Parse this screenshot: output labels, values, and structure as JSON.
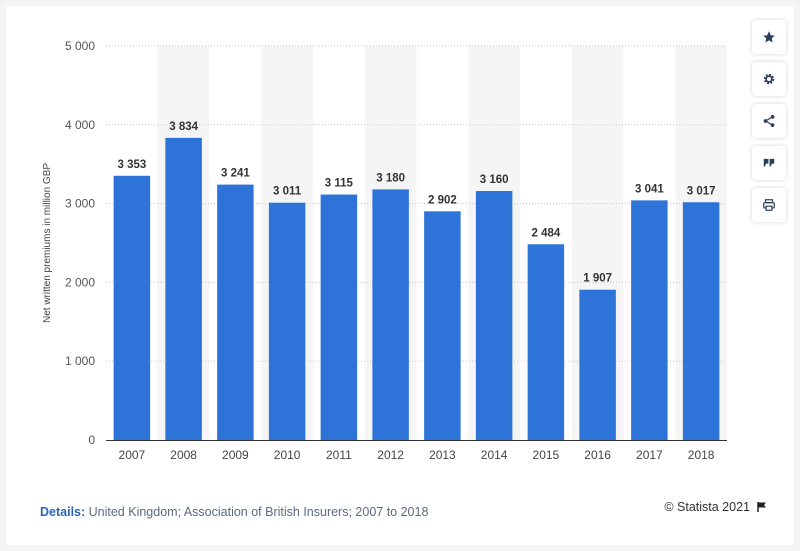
{
  "chart_data": {
    "type": "bar",
    "categories": [
      "2007",
      "2008",
      "2009",
      "2010",
      "2011",
      "2012",
      "2013",
      "2014",
      "2015",
      "2016",
      "2017",
      "2018"
    ],
    "values": [
      3353,
      3834,
      3241,
      3011,
      3115,
      3180,
      2902,
      3160,
      2484,
      1907,
      3041,
      3017
    ],
    "value_labels": [
      "3 353",
      "3 834",
      "3 241",
      "3 011",
      "3 115",
      "3 180",
      "2 902",
      "3 160",
      "2 484",
      "1 907",
      "3 041",
      "3 017"
    ],
    "ylabel": "Net written premiums in million GBP",
    "ylim": [
      0,
      5000
    ],
    "yticks": [
      0,
      1000,
      2000,
      3000,
      4000,
      5000
    ],
    "ytick_labels": [
      "0",
      "1 000",
      "2 000",
      "3 000",
      "4 000",
      "5 000"
    ],
    "grid": true,
    "bar_color": "#2e74d8"
  },
  "sidebar": {
    "buttons": [
      {
        "icon": "star-icon",
        "name": "favorite-button"
      },
      {
        "icon": "gear-icon",
        "name": "settings-button"
      },
      {
        "icon": "share-icon",
        "name": "share-button"
      },
      {
        "icon": "quote-icon",
        "name": "cite-button"
      },
      {
        "icon": "print-icon",
        "name": "print-button"
      }
    ]
  },
  "footer": {
    "details_label": "Details:",
    "details_text": " United Kingdom; Association of British Insurers; 2007 to 2018",
    "copyright": "© Statista 2021"
  }
}
